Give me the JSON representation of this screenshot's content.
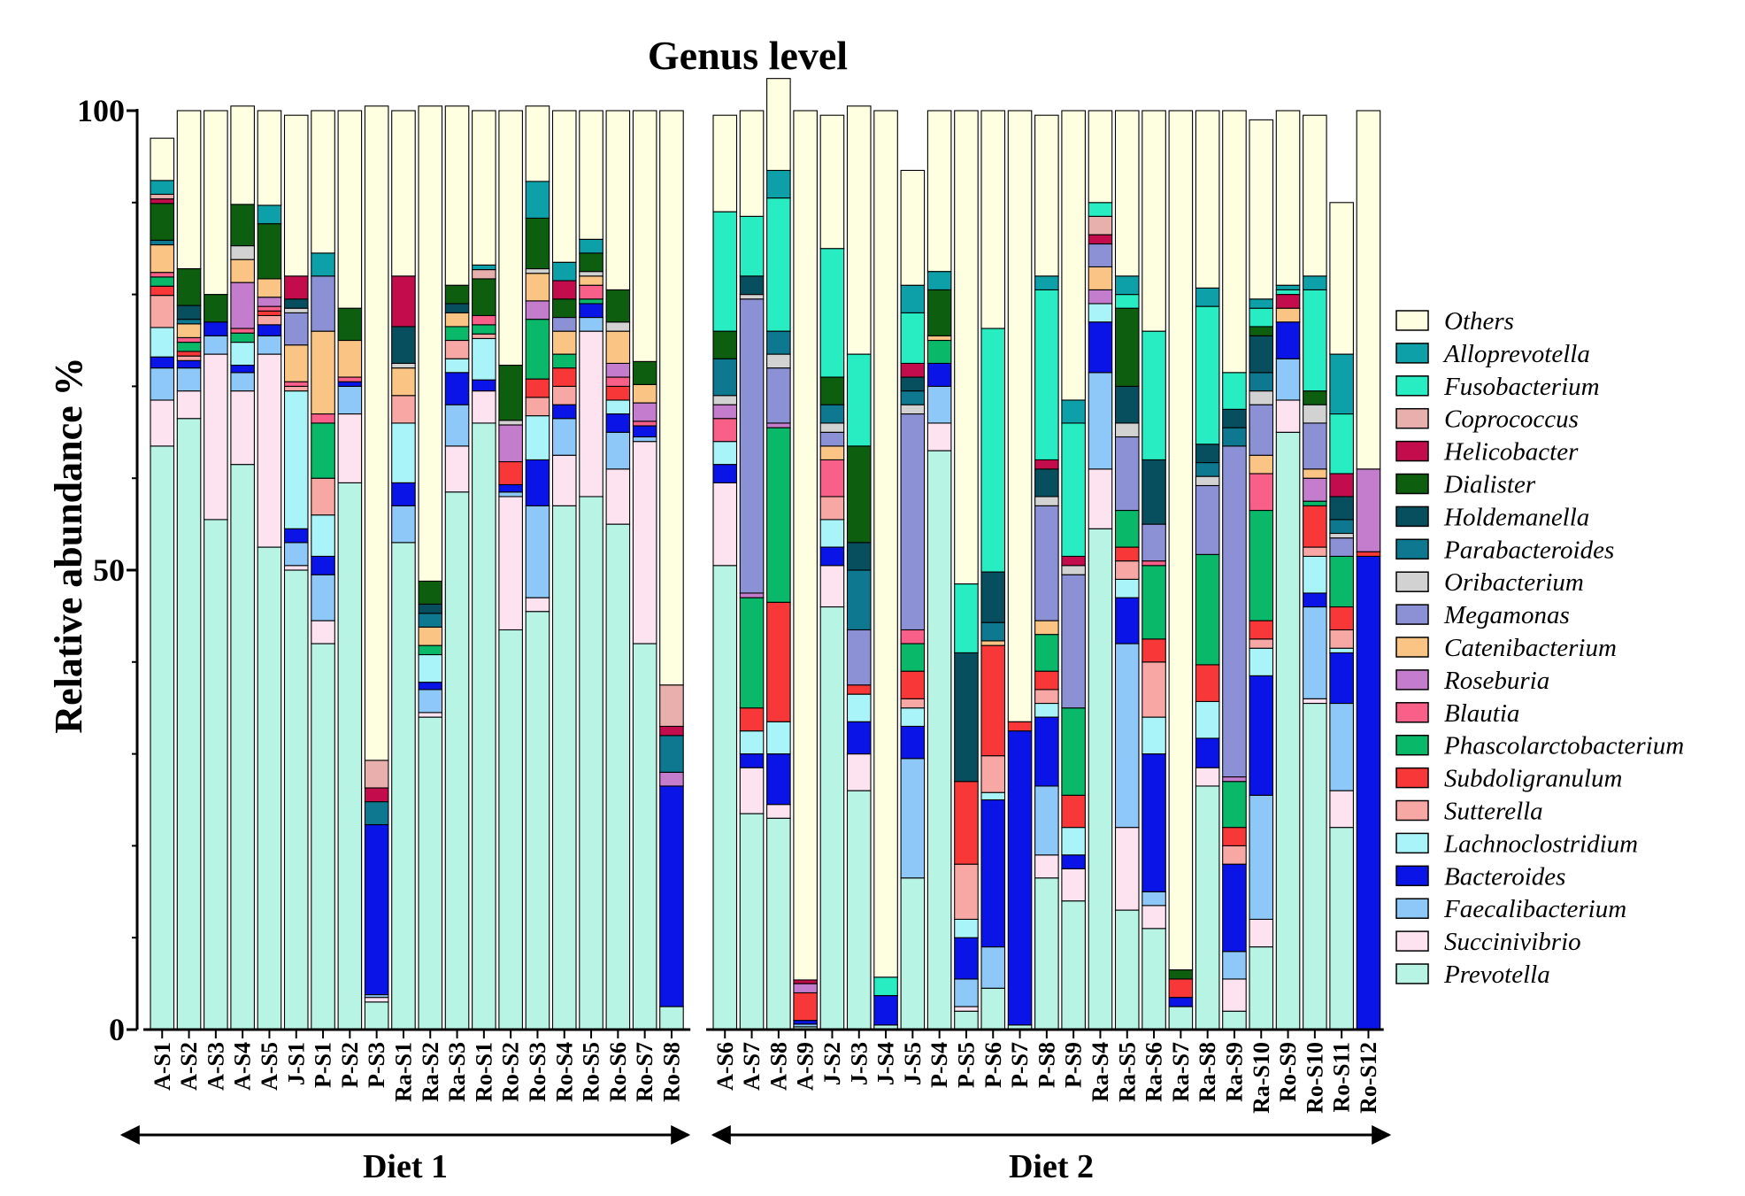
{
  "chart_data": {
    "type": "bar",
    "stacked": true,
    "title": "Genus level",
    "ylabel": "Relative abundance %",
    "xlabel": "",
    "ylim": [
      0,
      100
    ],
    "yticks": [
      "0",
      "50",
      "100"
    ],
    "legend_placement": "right",
    "groups": [
      {
        "label": "Diet 1",
        "categories": [
          "A-S1",
          "A-S2",
          "A-S3",
          "A-S4",
          "A-S5",
          "J-S1",
          "P-S1",
          "P-S2",
          "P-S3",
          "Ra-S1",
          "Ra-S2",
          "Ra-S3",
          "Ro-S1",
          "Ro-S2",
          "Ro-S3",
          "Ro-S4",
          "Ro-S5",
          "Ro-S6",
          "Ro-S7",
          "Ro-S8"
        ]
      },
      {
        "label": "Diet 2",
        "categories": [
          "A-S6",
          "A-S7",
          "A-S8",
          "A-S9",
          "J-S2",
          "J-S3",
          "J-S4",
          "J-S5",
          "P-S4",
          "P-S5",
          "P-S6",
          "P-S7",
          "P-S8",
          "P-S9",
          "Ra-S4",
          "Ra-S5",
          "Ra-S6",
          "Ra-S7",
          "Ra-S8",
          "Ra-S9",
          "Ra-S10",
          "Ro-S9",
          "Ro-S10",
          "Ro-S11",
          "Ro-S12"
        ]
      }
    ],
    "categories": [
      "A-S1",
      "A-S2",
      "A-S3",
      "A-S4",
      "A-S5",
      "J-S1",
      "P-S1",
      "P-S2",
      "P-S3",
      "Ra-S1",
      "Ra-S2",
      "Ra-S3",
      "Ro-S1",
      "Ro-S2",
      "Ro-S3",
      "Ro-S4",
      "Ro-S5",
      "Ro-S6",
      "Ro-S7",
      "Ro-S8",
      "A-S6",
      "A-S7",
      "A-S8",
      "A-S9",
      "J-S2",
      "J-S3",
      "J-S4",
      "J-S5",
      "P-S4",
      "P-S5",
      "P-S6",
      "P-S7",
      "P-S8",
      "P-S9",
      "Ra-S4",
      "Ra-S5",
      "Ra-S6",
      "Ra-S7",
      "Ra-S8",
      "Ra-S9",
      "Ra-S10",
      "Ro-S9",
      "Ro-S10",
      "Ro-S11",
      "Ro-S12"
    ],
    "series": [
      {
        "name": "Prevotella",
        "color": "#b8f4e4",
        "values": [
          63.5,
          66.5,
          55.5,
          61.5,
          52.5,
          50,
          42,
          59.5,
          3,
          53,
          34,
          58.5,
          66,
          43.5,
          45.5,
          57,
          58,
          55,
          42,
          2.5,
          50.5,
          23.5,
          23,
          0.3,
          46,
          26,
          0.5,
          16.5,
          63,
          2,
          4.5,
          0.5,
          16.5,
          14,
          54.5,
          13,
          11,
          2.5,
          26.5,
          2,
          9,
          65,
          35.5,
          22,
          0
        ]
      },
      {
        "name": "Succinivibrio",
        "color": "#fde2f0",
        "values": [
          5,
          3,
          18,
          8,
          21,
          0.5,
          2.5,
          7.5,
          0.5,
          0,
          0.5,
          5,
          3.5,
          14.5,
          1.5,
          5.5,
          18,
          6,
          22,
          0,
          9,
          5,
          1.5,
          0,
          4.5,
          4,
          0,
          0,
          3,
          0.5,
          0,
          0,
          2.5,
          3.5,
          6.5,
          9,
          2.5,
          0,
          2,
          3.5,
          3,
          3.5,
          0.5,
          4,
          0
        ]
      },
      {
        "name": "Faecalibacterium",
        "color": "#8ec8f8",
        "values": [
          3.5,
          2.5,
          2,
          2,
          2,
          2.5,
          5,
          3,
          0.3,
          4,
          2.5,
          4.5,
          0,
          0.5,
          10,
          4,
          1.5,
          4,
          0.5,
          0,
          0,
          0,
          0,
          0.3,
          0,
          0,
          0,
          13,
          4,
          3,
          4.5,
          0,
          7.5,
          0,
          10.5,
          20,
          1.5,
          0,
          0,
          3,
          13.5,
          4.5,
          10,
          9.5,
          0
        ]
      },
      {
        "name": "Bacteroides",
        "color": "#0a14e6",
        "values": [
          1.2,
          0.8,
          1.5,
          0.8,
          1.2,
          1.5,
          2,
          0.5,
          18.5,
          2.5,
          0.8,
          3.5,
          1.2,
          0.8,
          5,
          1.5,
          1.5,
          2,
          1.2,
          24,
          2,
          1.5,
          5.5,
          0.4,
          2,
          3.5,
          3.2,
          3.5,
          2.5,
          4.5,
          16,
          32,
          7.5,
          1.5,
          5.5,
          5,
          15,
          1,
          3.2,
          9.5,
          13,
          4,
          1.5,
          5.5,
          51.5
        ]
      },
      {
        "name": "Lachnoclostridium",
        "color": "#a8f4f8",
        "values": [
          3.2,
          0,
          0,
          2.5,
          0,
          15,
          4.5,
          0,
          0,
          6.5,
          3,
          1.5,
          4.5,
          0,
          4.8,
          0,
          0,
          1.5,
          0,
          0,
          2.5,
          2.5,
          3.5,
          0,
          3,
          3,
          0,
          2,
          0,
          2,
          0.8,
          0,
          1.5,
          3,
          2,
          2,
          4,
          0,
          4,
          0,
          3,
          0,
          4,
          0.5,
          0
        ]
      },
      {
        "name": "Sutterella",
        "color": "#f8a8a4",
        "values": [
          3.5,
          0.5,
          0,
          0,
          1,
          0.5,
          4,
          0,
          0,
          3,
          0,
          2,
          0.5,
          0,
          2,
          2,
          0,
          0,
          0,
          0,
          0,
          0,
          0,
          0,
          2.5,
          0,
          0,
          1,
          0,
          6,
          4,
          0,
          1.5,
          0,
          0,
          2,
          6,
          0,
          0,
          2,
          1,
          0,
          1,
          2,
          0
        ]
      },
      {
        "name": "Subdoligranulum",
        "color": "#f83838",
        "values": [
          1,
          0.5,
          0,
          0,
          0.5,
          0,
          0,
          0,
          0,
          0,
          0,
          0,
          0,
          2.5,
          2,
          2,
          0,
          1.5,
          0,
          0,
          0,
          2.5,
          13,
          3,
          0,
          1,
          0,
          3,
          0,
          9,
          12,
          1,
          2,
          3.5,
          0,
          1.5,
          2.5,
          2,
          4,
          2,
          2,
          0,
          4.5,
          2.5,
          0.5
        ]
      },
      {
        "name": "Phascolarctobacterium",
        "color": "#0ab86a",
        "values": [
          1,
          1,
          0,
          1,
          0,
          0,
          6,
          0,
          0,
          0,
          1,
          1.5,
          1,
          0,
          6.5,
          1.5,
          0.5,
          0,
          0,
          0,
          0,
          12,
          19,
          0,
          0,
          0,
          0,
          3,
          2.5,
          0,
          0,
          0,
          4,
          9.5,
          0,
          4,
          8,
          0,
          12,
          5,
          12,
          0,
          0.5,
          5.5,
          0
        ]
      },
      {
        "name": "Blautia",
        "color": "#f8608a",
        "values": [
          0.5,
          0.5,
          0,
          0.5,
          0.5,
          0.5,
          1,
          0.5,
          0,
          0,
          0,
          0,
          1,
          0,
          0,
          0,
          1.5,
          1,
          0.5,
          0,
          2.5,
          0,
          0,
          0,
          4,
          0,
          0,
          1.5,
          0,
          0,
          0,
          0,
          0,
          0,
          0,
          0,
          0.5,
          0,
          0,
          0,
          4,
          0,
          0,
          0,
          0
        ]
      },
      {
        "name": "Roseburia",
        "color": "#c47ccc",
        "values": [
          0,
          0,
          0,
          5,
          1,
          0,
          0,
          0,
          0,
          0,
          0,
          0,
          0,
          4,
          2,
          0,
          0,
          1.5,
          2,
          1.5,
          1.5,
          0.5,
          0.5,
          1,
          0,
          0,
          0,
          0,
          0,
          0,
          0,
          0,
          0,
          0,
          1.5,
          0,
          0,
          0,
          0,
          0.5,
          0,
          0,
          2.5,
          0,
          9
        ]
      },
      {
        "name": "Catenibacterium",
        "color": "#fac484",
        "values": [
          3,
          1.5,
          0,
          2.5,
          2,
          4,
          9,
          4,
          0,
          3,
          2,
          1.5,
          0,
          0,
          3,
          2.5,
          1,
          3.5,
          2,
          0,
          0,
          0,
          0,
          0,
          1.5,
          0,
          0,
          0,
          0.5,
          0,
          0.5,
          0,
          1.5,
          0,
          2.5,
          0,
          0,
          0,
          0,
          0,
          2,
          1.5,
          1,
          0,
          0
        ]
      },
      {
        "name": "Megamonas",
        "color": "#8c90d4",
        "values": [
          0,
          0,
          0,
          0,
          0,
          3.5,
          6,
          0,
          0,
          0,
          0,
          0,
          0,
          0,
          0,
          1.5,
          0,
          0,
          0,
          0,
          0,
          32,
          6,
          0,
          1.5,
          6,
          0,
          23.5,
          0,
          0,
          0,
          0,
          12.5,
          14.5,
          2.5,
          8,
          4,
          0,
          7.5,
          36,
          5.5,
          0,
          5,
          2,
          0
        ]
      },
      {
        "name": "Oribacterium",
        "color": "#d2d2d2",
        "values": [
          0,
          0,
          0,
          1.5,
          0,
          0.5,
          0,
          0,
          0,
          0.5,
          0,
          0,
          0,
          0.5,
          0.5,
          0,
          0.5,
          1,
          0,
          0,
          1,
          0.5,
          1.5,
          0,
          1,
          0,
          0,
          1,
          0,
          0,
          0,
          0,
          1,
          1,
          0,
          1.5,
          0,
          0,
          1,
          0,
          1.5,
          0,
          2,
          0.5,
          0
        ]
      },
      {
        "name": "Parabacteroides",
        "color": "#0e7890",
        "values": [
          0.5,
          0.5,
          0,
          0,
          0,
          0,
          0,
          0,
          2.5,
          0,
          1.5,
          0,
          0,
          0,
          0,
          0,
          0,
          0,
          0,
          4,
          4,
          0,
          2.5,
          0,
          2,
          6.5,
          0,
          1.5,
          0,
          0,
          2,
          0,
          0,
          0,
          0,
          0,
          0,
          0,
          1.5,
          2,
          2,
          0,
          0,
          1.5,
          0
        ]
      },
      {
        "name": "Holdemanella",
        "color": "#074e5e",
        "values": [
          0,
          1.5,
          0,
          0,
          0,
          1,
          0,
          0,
          0,
          4,
          1,
          1,
          0,
          0,
          0,
          0,
          0,
          0,
          0,
          0,
          0,
          2,
          0,
          0,
          0,
          3,
          0,
          1.5,
          0,
          14,
          5.5,
          0,
          3,
          0,
          0,
          4,
          7,
          0,
          2,
          2,
          4,
          0,
          0,
          2.5,
          0
        ]
      },
      {
        "name": "Dialister",
        "color": "#0e5e10",
        "values": [
          4,
          4,
          3,
          4.5,
          6,
          0,
          0,
          3.5,
          0,
          0,
          2.5,
          2,
          4,
          6,
          5.5,
          2,
          2,
          3.5,
          2.5,
          0,
          3,
          0,
          0,
          0,
          3,
          10.5,
          0,
          0,
          5,
          0,
          0,
          0,
          0,
          0,
          0,
          8.5,
          0,
          1,
          0,
          0,
          1,
          0,
          1.5,
          0,
          0
        ]
      },
      {
        "name": "Helicobacter",
        "color": "#c20c4c",
        "values": [
          0.5,
          0,
          0,
          0,
          0,
          2.5,
          0,
          0,
          1.5,
          5.5,
          0,
          0,
          0,
          0,
          0,
          2,
          0,
          0,
          0,
          1,
          0,
          0,
          0,
          0.4,
          0,
          0,
          0,
          1.5,
          0,
          0,
          0,
          0,
          1,
          1,
          1,
          0,
          0,
          0,
          0,
          0,
          0,
          1.5,
          0,
          2.5,
          0
        ]
      },
      {
        "name": "Coprococcus",
        "color": "#e8b0ac",
        "values": [
          0.5,
          0,
          0,
          0,
          0,
          0,
          0,
          0,
          3,
          0,
          0,
          0,
          1,
          0,
          0,
          0,
          0,
          0,
          0,
          4.5,
          0,
          0,
          0,
          0,
          0,
          0,
          0,
          0,
          0,
          0,
          0,
          0,
          0,
          0,
          2,
          0,
          0,
          0,
          0,
          0,
          0,
          0,
          0,
          0,
          0
        ]
      },
      {
        "name": "Fusobacterium",
        "color": "#28ecc2",
        "values": [
          0,
          0,
          0,
          0,
          0,
          0,
          0,
          0,
          0,
          0,
          0,
          0,
          0,
          0,
          0,
          0,
          0,
          0,
          0,
          0,
          13,
          6.5,
          14.5,
          0,
          14,
          10,
          2,
          5.5,
          0,
          7.5,
          26.5,
          0,
          18.5,
          14.5,
          1.5,
          1.5,
          14,
          0,
          15,
          4,
          2,
          0.5,
          11,
          6.5,
          0
        ]
      },
      {
        "name": "Alloprevotella",
        "color": "#0ea0a8",
        "values": [
          1.5,
          0,
          0,
          0,
          2,
          0,
          2.5,
          0,
          0,
          0,
          0,
          0,
          0.5,
          0,
          4,
          2,
          1.5,
          0,
          0,
          0,
          0,
          0,
          3,
          0,
          0,
          0,
          0,
          3,
          2,
          0,
          0,
          0,
          1.5,
          2.5,
          0,
          2,
          0,
          0,
          2,
          0,
          1,
          0.5,
          1.5,
          6.5,
          0
        ]
      },
      {
        "name": "Others",
        "color": "#fefee0",
        "values": [
          4.6,
          17.2,
          20,
          10.7,
          10.3,
          17.5,
          15.5,
          21.5,
          71.2,
          18,
          51.7,
          19.5,
          16.8,
          27.7,
          8.2,
          16.5,
          14,
          19.5,
          27.3,
          62.5,
          10.5,
          11.5,
          10,
          94.6,
          14.5,
          27,
          94.3,
          12.5,
          17.5,
          51.5,
          23.7,
          66.5,
          17.5,
          31.5,
          10,
          18,
          24,
          93.5,
          19.3,
          28.5,
          19.5,
          19,
          17.5,
          16.5,
          39
        ]
      }
    ]
  }
}
